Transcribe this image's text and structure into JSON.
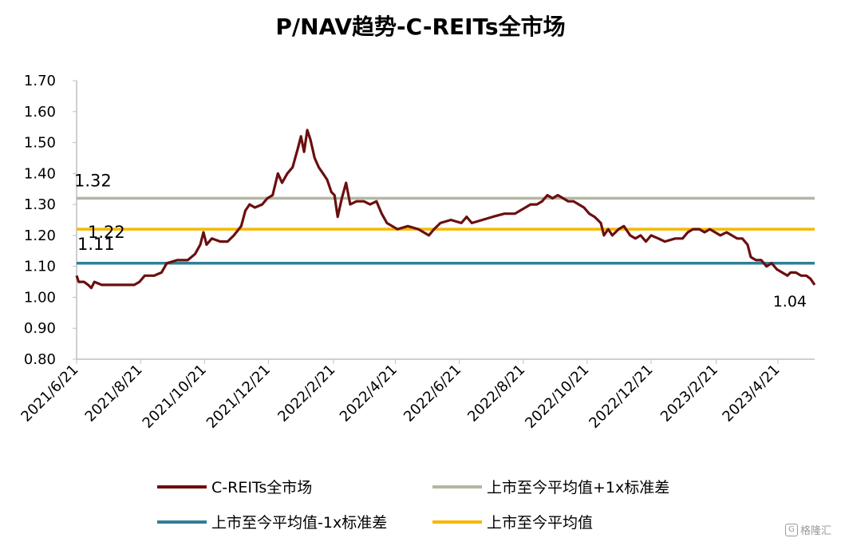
{
  "chart_data": {
    "type": "line",
    "title": "P/NAV趋势-C-REITs全市场",
    "ylim": [
      0.8,
      1.7
    ],
    "y_ticks": [
      "1.70",
      "1.60",
      "1.50",
      "1.40",
      "1.30",
      "1.20",
      "1.10",
      "1.00",
      "0.90",
      "0.80"
    ],
    "x_ticks": [
      "2021/6/21",
      "2021/8/21",
      "2021/10/21",
      "2021/12/21",
      "2022/2/21",
      "2022/4/21",
      "2022/6/21",
      "2022/8/21",
      "2022/10/21",
      "2022/12/21",
      "2023/2/21",
      "2023/4/21"
    ],
    "x_range": [
      "2021/6/21",
      "2023/5/26"
    ],
    "grid": false,
    "legend_position": "bottom",
    "series": [
      {
        "name": "C-REITs全市场",
        "color": "#6b0f0f",
        "points": [
          [
            "2021/6/21",
            1.07
          ],
          [
            "2021/6/23",
            1.05
          ],
          [
            "2021/6/28",
            1.05
          ],
          [
            "2021/7/2",
            1.04
          ],
          [
            "2021/7/5",
            1.03
          ],
          [
            "2021/7/8",
            1.05
          ],
          [
            "2021/7/15",
            1.04
          ],
          [
            "2021/7/25",
            1.04
          ],
          [
            "2021/8/5",
            1.04
          ],
          [
            "2021/8/15",
            1.04
          ],
          [
            "2021/8/20",
            1.05
          ],
          [
            "2021/8/25",
            1.07
          ],
          [
            "2021/9/3",
            1.07
          ],
          [
            "2021/9/10",
            1.08
          ],
          [
            "2021/9/15",
            1.11
          ],
          [
            "2021/9/25",
            1.12
          ],
          [
            "2021/10/5",
            1.12
          ],
          [
            "2021/10/12",
            1.14
          ],
          [
            "2021/10/17",
            1.17
          ],
          [
            "2021/10/20",
            1.21
          ],
          [
            "2021/10/23",
            1.17
          ],
          [
            "2021/10/28",
            1.19
          ],
          [
            "2021/11/5",
            1.18
          ],
          [
            "2021/11/12",
            1.18
          ],
          [
            "2021/11/18",
            1.2
          ],
          [
            "2021/11/25",
            1.23
          ],
          [
            "2021/11/29",
            1.28
          ],
          [
            "2021/12/3",
            1.3
          ],
          [
            "2021/12/8",
            1.29
          ],
          [
            "2021/12/15",
            1.3
          ],
          [
            "2021/12/20",
            1.32
          ],
          [
            "2021/12/25",
            1.33
          ],
          [
            "2021/12/30",
            1.4
          ],
          [
            "2022/1/3",
            1.37
          ],
          [
            "2022/1/8",
            1.4
          ],
          [
            "2022/1/13",
            1.42
          ],
          [
            "2022/1/18",
            1.48
          ],
          [
            "2022/1/21",
            1.52
          ],
          [
            "2022/1/24",
            1.47
          ],
          [
            "2022/1/27",
            1.54
          ],
          [
            "2022/1/30",
            1.51
          ],
          [
            "2022/2/3",
            1.45
          ],
          [
            "2022/2/7",
            1.42
          ],
          [
            "2022/2/11",
            1.4
          ],
          [
            "2022/2/15",
            1.38
          ],
          [
            "2022/2/19",
            1.34
          ],
          [
            "2022/2/22",
            1.33
          ],
          [
            "2022/2/25",
            1.26
          ],
          [
            "2022/3/1",
            1.32
          ],
          [
            "2022/3/5",
            1.37
          ],
          [
            "2022/3/9",
            1.3
          ],
          [
            "2022/3/15",
            1.31
          ],
          [
            "2022/3/22",
            1.31
          ],
          [
            "2022/3/28",
            1.3
          ],
          [
            "2022/4/3",
            1.31
          ],
          [
            "2022/4/8",
            1.27
          ],
          [
            "2022/4/13",
            1.24
          ],
          [
            "2022/4/18",
            1.23
          ],
          [
            "2022/4/23",
            1.22
          ],
          [
            "2022/5/3",
            1.23
          ],
          [
            "2022/5/13",
            1.22
          ],
          [
            "2022/5/18",
            1.21
          ],
          [
            "2022/5/23",
            1.2
          ],
          [
            "2022/5/28",
            1.22
          ],
          [
            "2022/6/3",
            1.24
          ],
          [
            "2022/6/13",
            1.25
          ],
          [
            "2022/6/23",
            1.24
          ],
          [
            "2022/6/28",
            1.26
          ],
          [
            "2022/7/3",
            1.24
          ],
          [
            "2022/7/13",
            1.25
          ],
          [
            "2022/7/23",
            1.26
          ],
          [
            "2022/8/3",
            1.27
          ],
          [
            "2022/8/13",
            1.27
          ],
          [
            "2022/8/23",
            1.29
          ],
          [
            "2022/8/28",
            1.3
          ],
          [
            "2022/9/3",
            1.3
          ],
          [
            "2022/9/8",
            1.31
          ],
          [
            "2022/9/13",
            1.33
          ],
          [
            "2022/9/18",
            1.32
          ],
          [
            "2022/9/23",
            1.33
          ],
          [
            "2022/9/28",
            1.32
          ],
          [
            "2022/10/3",
            1.31
          ],
          [
            "2022/10/8",
            1.31
          ],
          [
            "2022/10/13",
            1.3
          ],
          [
            "2022/10/18",
            1.29
          ],
          [
            "2022/10/23",
            1.27
          ],
          [
            "2022/10/28",
            1.26
          ],
          [
            "2022/11/3",
            1.24
          ],
          [
            "2022/11/6",
            1.2
          ],
          [
            "2022/11/10",
            1.22
          ],
          [
            "2022/11/14",
            1.2
          ],
          [
            "2022/11/20",
            1.22
          ],
          [
            "2022/11/25",
            1.23
          ],
          [
            "2022/12/1",
            1.2
          ],
          [
            "2022/12/6",
            1.19
          ],
          [
            "2022/12/11",
            1.2
          ],
          [
            "2022/12/16",
            1.18
          ],
          [
            "2022/12/21",
            1.2
          ],
          [
            "2022/12/28",
            1.19
          ],
          [
            "2023/1/3",
            1.18
          ],
          [
            "2023/1/13",
            1.19
          ],
          [
            "2023/1/20",
            1.19
          ],
          [
            "2023/1/25",
            1.21
          ],
          [
            "2023/1/30",
            1.22
          ],
          [
            "2023/2/5",
            1.22
          ],
          [
            "2023/2/10",
            1.21
          ],
          [
            "2023/2/15",
            1.22
          ],
          [
            "2023/2/20",
            1.21
          ],
          [
            "2023/2/25",
            1.2
          ],
          [
            "2023/3/3",
            1.21
          ],
          [
            "2023/3/8",
            1.2
          ],
          [
            "2023/3/13",
            1.19
          ],
          [
            "2023/3/18",
            1.19
          ],
          [
            "2023/3/23",
            1.17
          ],
          [
            "2023/3/26",
            1.13
          ],
          [
            "2023/3/31",
            1.12
          ],
          [
            "2023/4/5",
            1.12
          ],
          [
            "2023/4/10",
            1.1
          ],
          [
            "2023/4/15",
            1.11
          ],
          [
            "2023/4/20",
            1.09
          ],
          [
            "2023/4/25",
            1.08
          ],
          [
            "2023/4/30",
            1.07
          ],
          [
            "2023/5/3",
            1.08
          ],
          [
            "2023/5/8",
            1.08
          ],
          [
            "2023/5/13",
            1.07
          ],
          [
            "2023/5/18",
            1.07
          ],
          [
            "2023/5/22",
            1.06
          ],
          [
            "2023/5/26",
            1.04
          ]
        ]
      },
      {
        "name": "上市至今平均值+1x标准差",
        "color": "#b5b5a2",
        "constant": 1.32
      },
      {
        "name": "上市至今平均值-1x标准差",
        "color": "#2f7f98",
        "constant": 1.11
      },
      {
        "name": "上市至今平均值",
        "color": "#f5b800",
        "constant": 1.22
      }
    ],
    "annotations": [
      {
        "text": "1.32",
        "y": 1.32
      },
      {
        "text": "1.22",
        "y": 1.22
      },
      {
        "text": "1.11",
        "y": 1.11
      },
      {
        "text": "1.04",
        "y": 1.04
      }
    ]
  },
  "legend": {
    "items": [
      "C-REITs全市场",
      "上市至今平均值+1x标准差",
      "上市至今平均值-1x标准差",
      "上市至今平均值"
    ]
  },
  "watermark": {
    "text": "格隆汇"
  }
}
